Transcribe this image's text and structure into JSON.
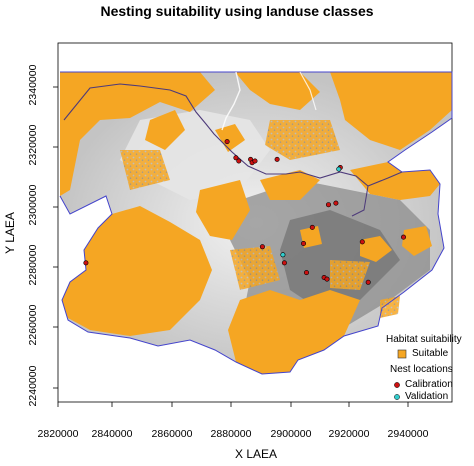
{
  "title": "Nesting suitability using landuse classes",
  "xlabel": "X LAEA",
  "ylabel": "Y LAEA",
  "x_ticks": [
    "2820000",
    "2840000",
    "2860000",
    "2880000",
    "2900000",
    "2920000",
    "2940000"
  ],
  "y_ticks": [
    "2240000",
    "2260000",
    "2280000",
    "2300000",
    "2320000",
    "2340000"
  ],
  "legend": {
    "habitat_title": "Habitat suitability",
    "suitable_label": "Suitable",
    "nest_title": "Nest locations",
    "calibration_label": "Calibration",
    "validation_label": "Validation"
  },
  "colors": {
    "suitable": "#f5a623",
    "calibration": "#cc1111",
    "validation": "#33cccc",
    "boundary": "#4444cc",
    "relief_light": "#e8e8e8",
    "relief_dark": "#6a6a6a"
  },
  "chart_data": {
    "type": "map",
    "title": "Nesting suitability using landuse classes",
    "xlabel": "X LAEA",
    "ylabel": "Y LAEA",
    "xlim": [
      2819000,
      2953000
    ],
    "ylim": [
      2236000,
      2347000
    ],
    "calibration_nests": [
      {
        "x": 2828500,
        "y": 2279000
      },
      {
        "x": 2876500,
        "y": 2316500
      },
      {
        "x": 2879500,
        "y": 2311500
      },
      {
        "x": 2880500,
        "y": 2310500
      },
      {
        "x": 2884500,
        "y": 2311000
      },
      {
        "x": 2885000,
        "y": 2310000
      },
      {
        "x": 2886000,
        "y": 2310500
      },
      {
        "x": 2893500,
        "y": 2311000
      },
      {
        "x": 2911000,
        "y": 2297000
      },
      {
        "x": 2913500,
        "y": 2297500
      },
      {
        "x": 2915000,
        "y": 2308500
      },
      {
        "x": 2902500,
        "y": 2285000
      },
      {
        "x": 2905500,
        "y": 2290000
      },
      {
        "x": 2888500,
        "y": 2284000
      },
      {
        "x": 2896000,
        "y": 2279000
      },
      {
        "x": 2903500,
        "y": 2276000
      },
      {
        "x": 2909500,
        "y": 2274500
      },
      {
        "x": 2910500,
        "y": 2274000
      },
      {
        "x": 2924500,
        "y": 2273000
      },
      {
        "x": 2936500,
        "y": 2287000
      },
      {
        "x": 2922500,
        "y": 2285500
      }
    ],
    "validation_nests": [
      {
        "x": 2914500,
        "y": 2308000
      },
      {
        "x": 2895500,
        "y": 2281500
      }
    ]
  }
}
